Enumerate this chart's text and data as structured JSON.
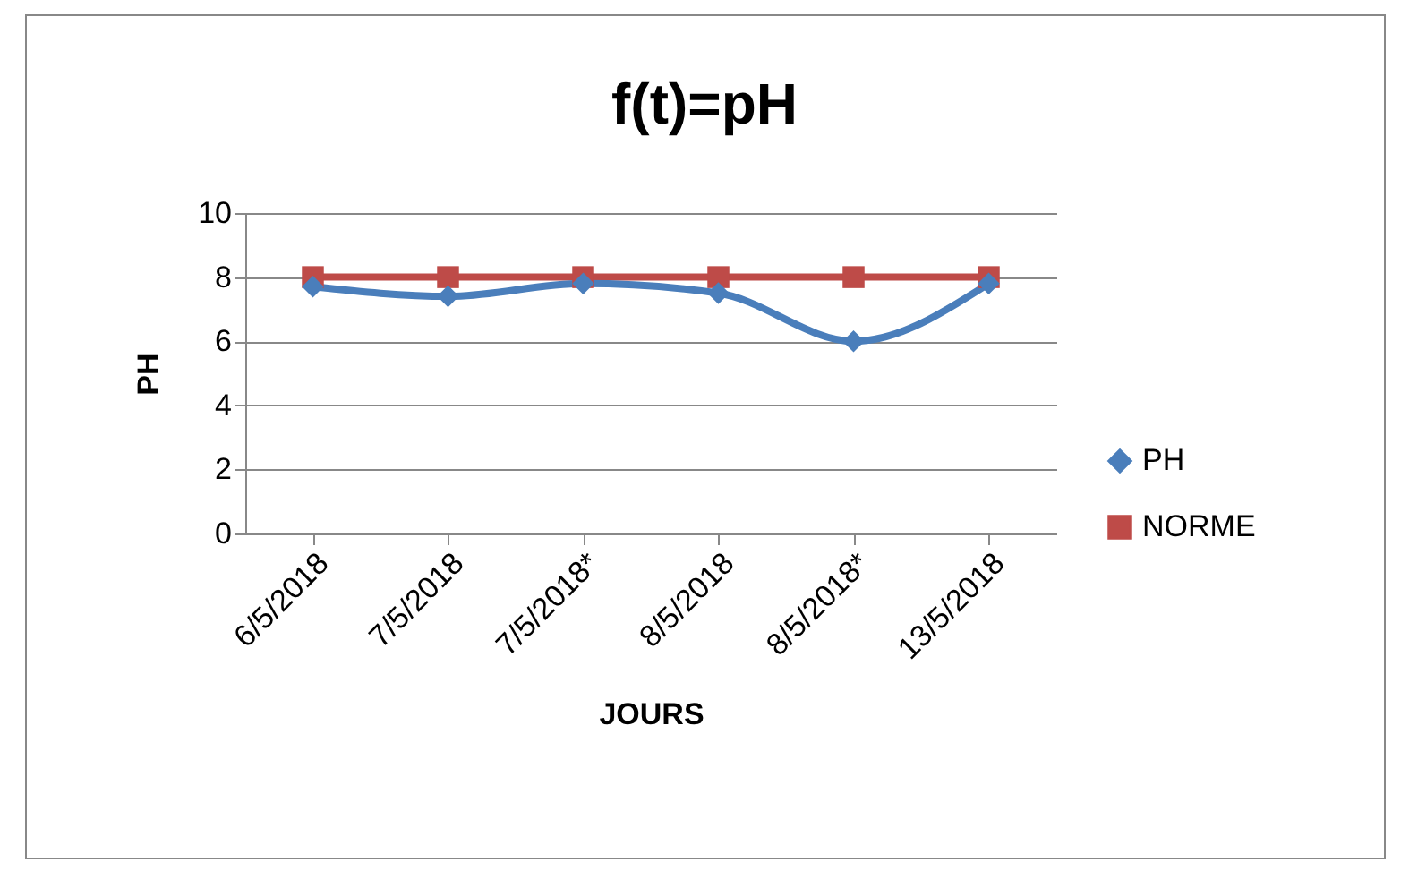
{
  "chart_data": {
    "type": "line",
    "title": "f(t)=pH",
    "xlabel": "JOURS",
    "ylabel": "PH",
    "categories": [
      "6/5/2018",
      "7/5/2018",
      "7/5/2018*",
      "8/5/2018",
      "8/5/2018*",
      "13/5/2018"
    ],
    "series": [
      {
        "name": "PH",
        "color": "#4a7ebb",
        "marker": "diamond",
        "values": [
          7.7,
          7.4,
          7.8,
          7.5,
          6.0,
          7.8
        ]
      },
      {
        "name": "NORME",
        "color": "#be4b48",
        "marker": "square",
        "values": [
          8,
          8,
          8,
          8,
          8,
          8
        ]
      }
    ],
    "ylim": [
      0,
      10
    ],
    "yticks": [
      0,
      2,
      4,
      6,
      8,
      10
    ],
    "grid": "y",
    "legend": "right"
  }
}
